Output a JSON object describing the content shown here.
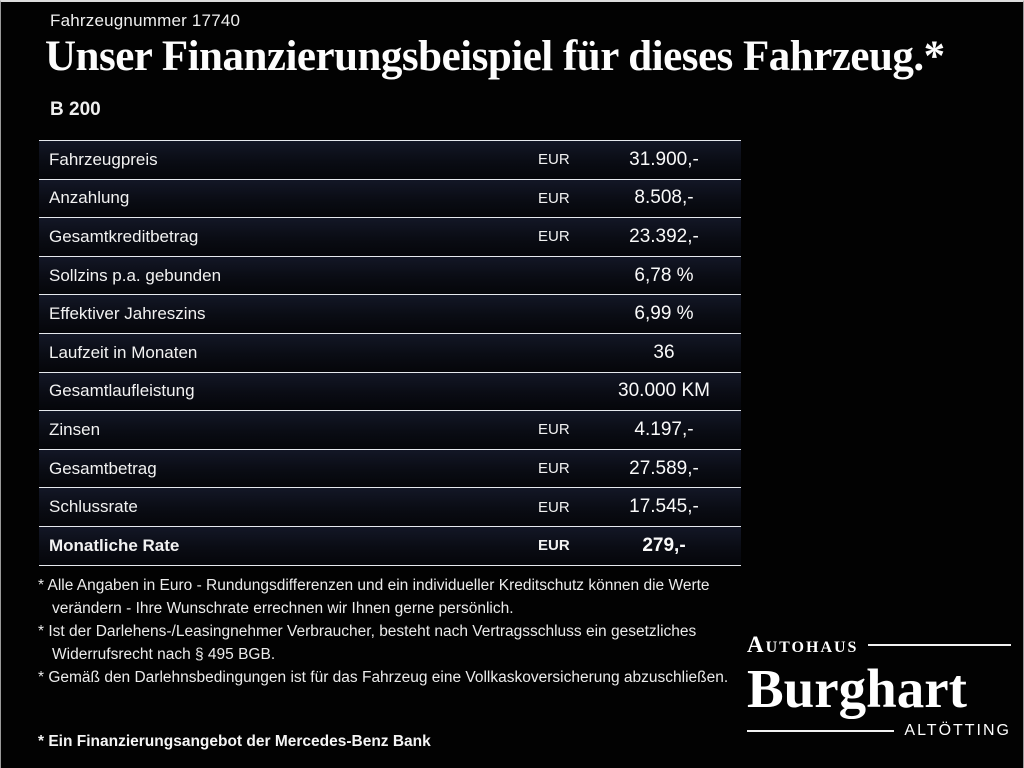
{
  "header": {
    "vehicle_number": "Fahrzeugnummer 17740",
    "title": "Unser Finanzierungsbeispiel für dieses Fahrzeug.*",
    "model": "B 200"
  },
  "table": {
    "rows": [
      {
        "label": "Fahrzeugpreis",
        "currency": "EUR",
        "value": "31.900,-",
        "bold": false
      },
      {
        "label": "Anzahlung",
        "currency": "EUR",
        "value": "8.508,-",
        "bold": false
      },
      {
        "label": "Gesamtkreditbetrag",
        "currency": "EUR",
        "value": "23.392,-",
        "bold": false
      },
      {
        "label": "Sollzins p.a. gebunden",
        "currency": "",
        "value": "6,78 %",
        "bold": false
      },
      {
        "label": "Effektiver Jahreszins",
        "currency": "",
        "value": "6,99 %",
        "bold": false
      },
      {
        "label": "Laufzeit in Monaten",
        "currency": "",
        "value": "36",
        "bold": false
      },
      {
        "label": "Gesamtlaufleistung",
        "currency": "",
        "value": "30.000 KM",
        "bold": false
      },
      {
        "label": "Zinsen",
        "currency": "EUR",
        "value": "4.197,-",
        "bold": false
      },
      {
        "label": "Gesamtbetrag",
        "currency": "EUR",
        "value": "27.589,-",
        "bold": false
      },
      {
        "label": "Schlussrate",
        "currency": "EUR",
        "value": "17.545,-",
        "bold": false
      },
      {
        "label": "Monatliche Rate",
        "currency": "EUR",
        "value": "279,-",
        "bold": true
      }
    ]
  },
  "footnotes": [
    "* Alle Angaben in Euro - Rundungsdifferenzen und ein individueller Kreditschutz können die Werte verändern - Ihre Wunschrate errechnen wir Ihnen gerne persönlich.",
    "* Ist der Darlehens-/Leasingnehmer Verbraucher, besteht nach Vertragsschluss ein gesetzliches Widerrufsrecht nach § 495 BGB.",
    "* Gemäß den Darlehnsbedingungen ist für das Fahrzeug eine Vollkaskoversicherung abzuschließen."
  ],
  "bank_note": "* Ein Finanzierungsangebot der Mercedes-Benz Bank",
  "logo": {
    "top": "Autohaus",
    "name": "Burghart",
    "bottom": "Altötting"
  },
  "colors": {
    "background": "#020202",
    "text": "#f4f4f4",
    "row_tint": "#131726",
    "divider": "#e6e9ee"
  }
}
